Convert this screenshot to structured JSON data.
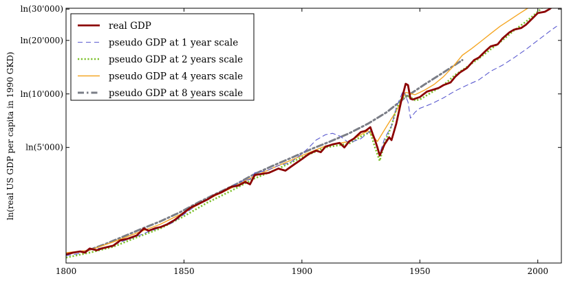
{
  "chart_data": {
    "type": "line",
    "title": "",
    "xlabel": "",
    "ylabel": "ln(real US GDP per capita in 1990 GKD)",
    "xlim": [
      1800,
      2010
    ],
    "ylim_ln": [
      7.02,
      10.32
    ],
    "y_scale": "log",
    "grid": false,
    "legend_position": "top-left",
    "x_ticks": [
      1800,
      1850,
      1900,
      1950,
      2000
    ],
    "x_tick_labels": [
      "1800",
      "1850",
      "1900",
      "1950",
      "2000"
    ],
    "y_ticks": [
      5000,
      10000,
      20000,
      30000
    ],
    "y_tick_labels": [
      "ln(5'000)",
      "ln(10'000)",
      "ln(20'000)",
      "ln(30'000)"
    ],
    "series": [
      {
        "name": "real GDP",
        "color": "#8b0000",
        "style": "solid",
        "width": 2.8,
        "x": [
          1800,
          1803,
          1806,
          1808,
          1810,
          1813,
          1815,
          1818,
          1820,
          1823,
          1826,
          1830,
          1833,
          1835,
          1838,
          1840,
          1843,
          1846,
          1850,
          1853,
          1856,
          1860,
          1863,
          1866,
          1870,
          1873,
          1876,
          1878,
          1880,
          1883,
          1886,
          1890,
          1893,
          1896,
          1900,
          1903,
          1906,
          1908,
          1910,
          1913,
          1916,
          1918,
          1920,
          1922,
          1925,
          1927,
          1929,
          1930,
          1931,
          1932,
          1933,
          1935,
          1937,
          1938,
          1940,
          1942,
          1944,
          1945,
          1946,
          1947,
          1948,
          1950,
          1953,
          1955,
          1958,
          1960,
          1963,
          1965,
          1967,
          1970,
          1973,
          1975,
          1978,
          1980,
          1983,
          1985,
          1988,
          1990,
          1993,
          1995,
          1998,
          2000,
          2003,
          2005,
          2007,
          2008,
          2009,
          2010
        ],
        "y": [
          1250,
          1280,
          1300,
          1280,
          1350,
          1320,
          1350,
          1380,
          1400,
          1500,
          1530,
          1600,
          1750,
          1700,
          1760,
          1780,
          1850,
          1950,
          2150,
          2300,
          2400,
          2550,
          2700,
          2800,
          3000,
          3050,
          3200,
          3100,
          3500,
          3550,
          3600,
          3800,
          3700,
          3950,
          4300,
          4600,
          4800,
          4700,
          5050,
          5200,
          5300,
          5000,
          5400,
          5600,
          6100,
          6200,
          6500,
          5950,
          5500,
          5000,
          4500,
          5200,
          5700,
          5500,
          6800,
          9000,
          11400,
          11200,
          9400,
          9300,
          9400,
          9600,
          10300,
          10500,
          10800,
          11200,
          11600,
          12500,
          13200,
          14000,
          15500,
          16000,
          17500,
          18500,
          19000,
          20500,
          22200,
          23000,
          23500,
          24500,
          26800,
          28500,
          29000,
          30000,
          31500,
          31700,
          30500,
          31000
        ]
      },
      {
        "name": "pseudo GDP at 1 year scale",
        "color": "#5b5bd0",
        "style": "dashed",
        "width": 1.1,
        "x": [
          1800,
          1805,
          1810,
          1815,
          1820,
          1825,
          1830,
          1835,
          1840,
          1845,
          1850,
          1855,
          1860,
          1865,
          1870,
          1875,
          1878,
          1880,
          1885,
          1890,
          1895,
          1900,
          1903,
          1906,
          1910,
          1913,
          1916,
          1920,
          1925,
          1929,
          1931,
          1933,
          1935,
          1938,
          1940,
          1943,
          1945,
          1946,
          1948,
          1950,
          1955,
          1960,
          1965,
          1970,
          1975,
          1980,
          1985,
          1990,
          1995,
          2000,
          2005,
          2008
        ],
        "y": [
          1230,
          1260,
          1330,
          1360,
          1410,
          1500,
          1580,
          1680,
          1770,
          1880,
          2100,
          2350,
          2550,
          2780,
          3000,
          3250,
          3300,
          3600,
          3700,
          3950,
          4100,
          4600,
          5000,
          5500,
          5900,
          6000,
          5800,
          5300,
          5600,
          6200,
          5600,
          4600,
          5600,
          6600,
          8400,
          10500,
          9000,
          7300,
          7900,
          8300,
          8800,
          9500,
          10400,
          11200,
          12000,
          13400,
          14500,
          16000,
          17800,
          20000,
          22500,
          24000
        ]
      },
      {
        "name": "pseudo GDP at 2 years scale",
        "color": "#7cc02a",
        "style": "dotted",
        "width": 2.6,
        "x": [
          1800,
          1810,
          1820,
          1830,
          1840,
          1850,
          1860,
          1870,
          1880,
          1890,
          1900,
          1910,
          1920,
          1926,
          1929,
          1931,
          1933,
          1935,
          1938,
          1940,
          1942,
          1944,
          1946,
          1948,
          1950,
          1955,
          1960,
          1965,
          1970,
          1975,
          1980,
          1985,
          1990,
          1995,
          2000,
          2003
        ],
        "y": [
          1200,
          1280,
          1380,
          1560,
          1750,
          2050,
          2450,
          2850,
          3350,
          3800,
          4400,
          5000,
          5250,
          5850,
          6100,
          5000,
          4200,
          5300,
          6600,
          8200,
          9300,
          9800,
          9600,
          9200,
          9300,
          10200,
          11200,
          12800,
          14200,
          15800,
          17800,
          20000,
          22800,
          25500,
          29000,
          31500
        ]
      },
      {
        "name": "pseudo GDP at 4 years scale",
        "color": "#f5a623",
        "style": "solid",
        "width": 1.4,
        "x": [
          1800,
          1810,
          1820,
          1830,
          1840,
          1850,
          1860,
          1870,
          1880,
          1890,
          1900,
          1910,
          1920,
          1925,
          1928,
          1932,
          1936,
          1940,
          1944,
          1948,
          1952,
          1956,
          1960,
          1964,
          1968,
          1972,
          1976,
          1980,
          1984,
          1988,
          1992,
          1996,
          2000
        ],
        "y": [
          1280,
          1320,
          1470,
          1650,
          1850,
          2150,
          2550,
          2950,
          3450,
          3950,
          4500,
          5100,
          5400,
          5900,
          6200,
          5400,
          6600,
          8000,
          10200,
          9900,
          10500,
          11300,
          12500,
          14200,
          16500,
          18000,
          19800,
          21800,
          24000,
          26000,
          28200,
          30500,
          33000
        ]
      },
      {
        "name": "pseudo GDP at 8 years scale",
        "color": "#7a7d86",
        "style": "dashdot",
        "width": 3.0,
        "x": [
          1808,
          1816,
          1824,
          1832,
          1840,
          1848,
          1856,
          1864,
          1872,
          1880,
          1888,
          1896,
          1904,
          1912,
          1920,
          1928,
          1936,
          1944,
          1952,
          1960,
          1968
        ],
        "y": [
          1300,
          1420,
          1570,
          1740,
          1920,
          2150,
          2450,
          2760,
          3100,
          3550,
          3960,
          4400,
          4900,
          5400,
          6000,
          6800,
          7900,
          9600,
          11300,
          13200,
          15500
        ]
      }
    ]
  }
}
